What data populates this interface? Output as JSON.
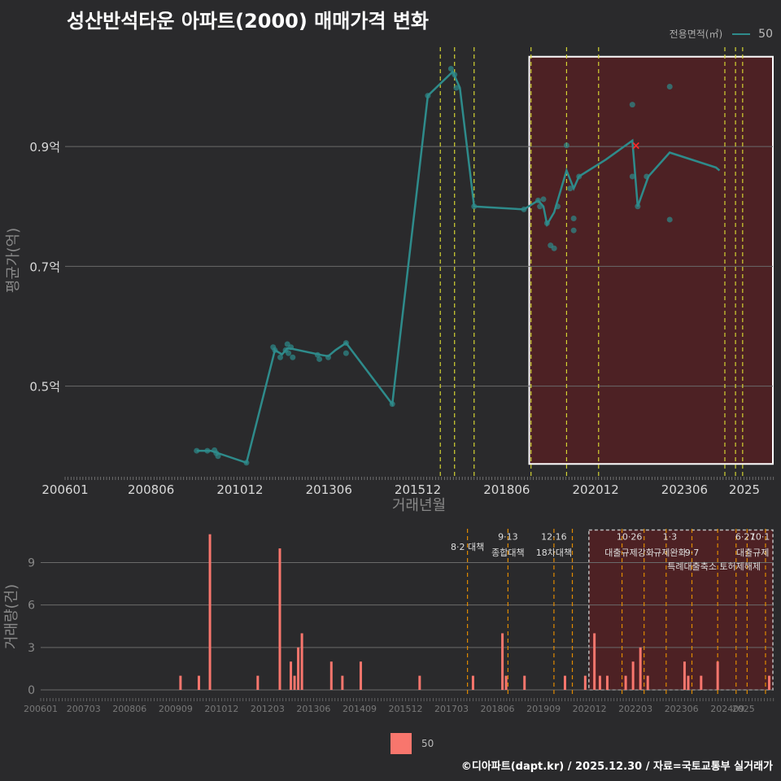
{
  "title": "성산반석타운 아파트(2000) 매매가격 변화",
  "legend": {
    "title": "전용면적(㎡)",
    "series_label": "50"
  },
  "legend_bottom": {
    "label": "50"
  },
  "footer": "©디아파트(dapt.kr) / 2025.12.30 / 자료=국토교통부 실거래가",
  "colors": {
    "background": "#2a2a2c",
    "price_line": "#2e8b8b",
    "volume_bar": "#f8766d",
    "highlight_fill": "#5a1f22",
    "policy_line_top": "#d4d433",
    "policy_line_bottom": "#e08a00",
    "marker": "#ff2a2a"
  },
  "chart_data": [
    {
      "type": "line",
      "title": "성산반석타운 아파트(2000) 매매가격 변화",
      "xlabel": "거래년월",
      "ylabel": "평균가(억)",
      "x_ticks": [
        "200601",
        "200806",
        "201012",
        "201306",
        "201512",
        "201806",
        "202012",
        "202306",
        "2025"
      ],
      "y_ticks": [
        0.5,
        0.7,
        0.9
      ],
      "y_tick_labels": [
        "0.5억",
        "0.7억",
        "0.9억"
      ],
      "ylim": [
        0.35,
        1.07
      ],
      "xlim": [
        2006.0,
        2025.9
      ],
      "series": [
        {
          "name": "50",
          "line": [
            [
              2009.7,
              0.392
            ],
            [
              2010.1,
              0.392
            ],
            [
              2010.3,
              0.388
            ],
            [
              2011.1,
              0.372
            ],
            [
              2011.9,
              0.56
            ],
            [
              2012.1,
              0.553
            ],
            [
              2012.25,
              0.563
            ],
            [
              2012.4,
              0.562
            ],
            [
              2013.2,
              0.552
            ],
            [
              2013.4,
              0.55
            ],
            [
              2013.6,
              0.56
            ],
            [
              2013.9,
              0.572
            ],
            [
              2015.2,
              0.47
            ],
            [
              2016.2,
              0.985
            ],
            [
              2016.9,
              1.025
            ],
            [
              2017.1,
              0.998
            ],
            [
              2017.5,
              0.8
            ],
            [
              2018.9,
              0.795
            ],
            [
              2019.3,
              0.81
            ],
            [
              2019.45,
              0.8
            ],
            [
              2019.55,
              0.77
            ],
            [
              2019.75,
              0.79
            ],
            [
              2020.1,
              0.86
            ],
            [
              2020.3,
              0.83
            ],
            [
              2020.45,
              0.85
            ],
            [
              2021.2,
              0.878
            ],
            [
              2021.95,
              0.91
            ],
            [
              2022.1,
              0.8
            ],
            [
              2022.4,
              0.85
            ],
            [
              2023.0,
              0.89
            ],
            [
              2024.3,
              0.865
            ],
            [
              2024.4,
              0.86
            ]
          ],
          "points": [
            [
              2009.7,
              0.392
            ],
            [
              2010.0,
              0.392
            ],
            [
              2010.2,
              0.393
            ],
            [
              2010.25,
              0.388
            ],
            [
              2010.3,
              0.383
            ],
            [
              2011.1,
              0.372
            ],
            [
              2011.85,
              0.565
            ],
            [
              2011.9,
              0.56
            ],
            [
              2012.05,
              0.548
            ],
            [
              2012.2,
              0.56
            ],
            [
              2012.25,
              0.57
            ],
            [
              2012.28,
              0.555
            ],
            [
              2012.35,
              0.565
            ],
            [
              2012.4,
              0.548
            ],
            [
              2013.1,
              0.552
            ],
            [
              2013.15,
              0.545
            ],
            [
              2013.4,
              0.548
            ],
            [
              2013.9,
              0.572
            ],
            [
              2013.9,
              0.555
            ],
            [
              2015.2,
              0.47
            ],
            [
              2016.2,
              0.985
            ],
            [
              2016.85,
              1.03
            ],
            [
              2016.95,
              1.02
            ],
            [
              2017.0,
              0.998
            ],
            [
              2017.5,
              0.8
            ],
            [
              2018.9,
              0.795
            ],
            [
              2019.3,
              0.81
            ],
            [
              2019.35,
              0.8
            ],
            [
              2019.45,
              0.812
            ],
            [
              2019.55,
              0.772
            ],
            [
              2019.65,
              0.735
            ],
            [
              2019.75,
              0.73
            ],
            [
              2019.85,
              0.8
            ],
            [
              2020.1,
              0.902
            ],
            [
              2020.2,
              0.83
            ],
            [
              2020.3,
              0.78
            ],
            [
              2020.3,
              0.76
            ],
            [
              2020.45,
              0.85
            ],
            [
              2021.95,
              0.97
            ],
            [
              2021.95,
              0.85
            ],
            [
              2022.1,
              0.8
            ],
            [
              2022.35,
              0.85
            ],
            [
              2023.0,
              1.0
            ],
            [
              2023.0,
              0.778
            ]
          ]
        }
      ],
      "marker_point": [
        2022.05,
        0.902
      ],
      "policy_dates": [
        2016.55,
        2016.95,
        2017.5,
        2019.1,
        2020.1,
        2021.0,
        2024.55,
        2024.85,
        2025.05
      ],
      "highlight_range": {
        "x": [
          2019.05,
          2025.9
        ],
        "y": [
          0.37,
          1.05
        ]
      }
    },
    {
      "type": "bar",
      "ylabel": "거래량(건)",
      "x_ticks": [
        "200601",
        "200703",
        "200806",
        "200909",
        "201012",
        "201203",
        "201306",
        "201409",
        "201512",
        "201703",
        "201806",
        "201909",
        "202012",
        "202203",
        "202306",
        "202409",
        "2025"
      ],
      "y_ticks": [
        0,
        3,
        6,
        9
      ],
      "ylim": [
        0,
        11.5
      ],
      "xlim": [
        2006.0,
        2025.9
      ],
      "series": [
        {
          "name": "50",
          "bars": [
            [
              2009.8,
              1
            ],
            [
              2010.3,
              1
            ],
            [
              2010.6,
              11
            ],
            [
              2011.9,
              1
            ],
            [
              2012.5,
              10
            ],
            [
              2012.8,
              2
            ],
            [
              2012.9,
              1
            ],
            [
              2013.0,
              3
            ],
            [
              2013.1,
              4
            ],
            [
              2013.9,
              2
            ],
            [
              2014.2,
              1
            ],
            [
              2014.7,
              2
            ],
            [
              2016.3,
              1
            ],
            [
              2017.75,
              1
            ],
            [
              2018.55,
              4
            ],
            [
              2018.65,
              1
            ],
            [
              2019.15,
              1
            ],
            [
              2020.25,
              1
            ],
            [
              2020.8,
              1
            ],
            [
              2021.05,
              4
            ],
            [
              2021.2,
              1
            ],
            [
              2021.4,
              1
            ],
            [
              2021.9,
              1
            ],
            [
              2022.1,
              2
            ],
            [
              2022.3,
              3
            ],
            [
              2022.5,
              1
            ],
            [
              2023.5,
              2
            ],
            [
              2023.6,
              1
            ],
            [
              2023.95,
              1
            ],
            [
              2024.4,
              2
            ],
            [
              2025.8,
              1
            ]
          ]
        }
      ],
      "policy_lines": [
        2017.6,
        2018.7,
        2019.95,
        2020.45,
        2021.8,
        2022.4,
        2023.0,
        2023.7,
        2024.4,
        2024.9,
        2025.2,
        2025.7
      ],
      "highlight_range": {
        "x": [
          2020.9,
          2025.9
        ],
        "y": [
          0,
          11.3
        ]
      },
      "annotations": [
        {
          "label": "8·2 대책",
          "x": 2017.6,
          "y": 9.9
        },
        {
          "label": "9·13",
          "x": 2018.7,
          "y": 10.6
        },
        {
          "label": "종합대책",
          "x": 2018.7,
          "y": 9.5
        },
        {
          "label": "12·16",
          "x": 2019.95,
          "y": 10.6
        },
        {
          "label": "18차대책",
          "x": 2019.95,
          "y": 9.5
        },
        {
          "label": "10·26",
          "x": 2022.0,
          "y": 10.6
        },
        {
          "label": "대출규제강화",
          "x": 2022.0,
          "y": 9.5
        },
        {
          "label": "1·3",
          "x": 2023.1,
          "y": 10.6
        },
        {
          "label": "규제완화",
          "x": 2023.1,
          "y": 9.5
        },
        {
          "label": "9·7",
          "x": 2023.7,
          "y": 9.5
        },
        {
          "label": "특례대출축소 토허제해제",
          "x": 2024.3,
          "y": 8.5
        },
        {
          "label": "6·27",
          "x": 2025.15,
          "y": 10.6
        },
        {
          "label": "10·1",
          "x": 2025.55,
          "y": 10.6
        },
        {
          "label": "대출규제",
          "x": 2025.35,
          "y": 9.5
        }
      ]
    }
  ]
}
